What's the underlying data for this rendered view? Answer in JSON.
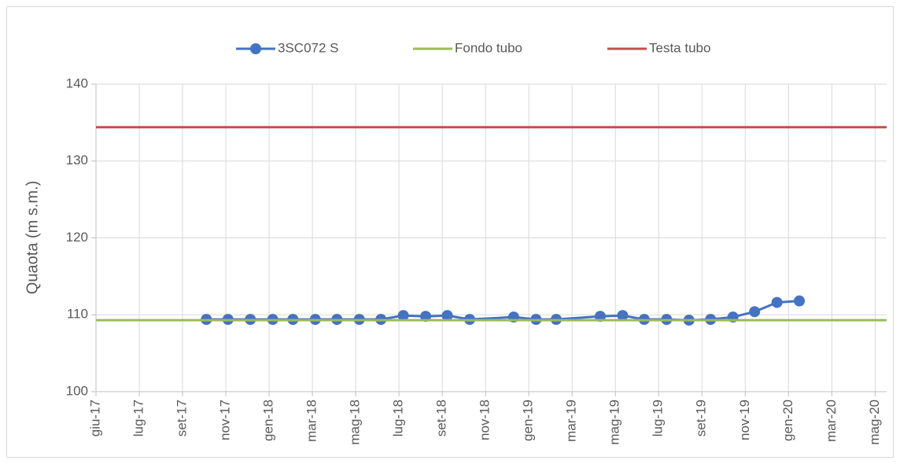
{
  "chart_data": {
    "type": "line",
    "y_label": "Quaota (m s.m.)",
    "xlim": [
      "2017-06-01",
      "2020-06-01"
    ],
    "xticks": [
      {
        "value": "2017-06-01",
        "label": "giu-17"
      },
      {
        "value": "2017-07-31",
        "label": "lug-17"
      },
      {
        "value": "2017-09-29",
        "label": "set-17"
      },
      {
        "value": "2017-11-28",
        "label": "nov-17"
      },
      {
        "value": "2018-01-27",
        "label": "gen-18"
      },
      {
        "value": "2018-03-28",
        "label": "mar-18"
      },
      {
        "value": "2018-05-27",
        "label": "mag-18"
      },
      {
        "value": "2018-07-26",
        "label": "lug-18"
      },
      {
        "value": "2018-09-24",
        "label": "set-18"
      },
      {
        "value": "2018-11-23",
        "label": "nov-18"
      },
      {
        "value": "2019-01-22",
        "label": "gen-19"
      },
      {
        "value": "2019-03-23",
        "label": "mar-19"
      },
      {
        "value": "2019-05-22",
        "label": "mag-19"
      },
      {
        "value": "2019-07-21",
        "label": "lug-19"
      },
      {
        "value": "2019-09-19",
        "label": "set-19"
      },
      {
        "value": "2019-11-18",
        "label": "nov-19"
      },
      {
        "value": "2020-01-17",
        "label": "gen-20"
      },
      {
        "value": "2020-03-17",
        "label": "mar-20"
      },
      {
        "value": "2020-05-16",
        "label": "mag-20"
      }
    ],
    "ylim": [
      100,
      140
    ],
    "yticks": [
      100,
      110,
      120,
      130,
      140
    ],
    "grid": true,
    "legend": "top",
    "series": [
      {
        "name": "3SC072 S",
        "color": "#4472c4",
        "markers": true,
        "x": [
          "2017-11",
          "2017-12",
          "2018-01",
          "2018-02",
          "2018-03",
          "2018-04",
          "2018-05",
          "2018-06",
          "2018-07",
          "2018-08",
          "2018-09",
          "2018-10",
          "2018-11",
          "2019-01",
          "2019-02",
          "2019-03",
          "2019-05",
          "2019-06",
          "2019-07",
          "2019-08",
          "2019-09",
          "2019-10",
          "2019-11",
          "2019-12",
          "2020-01",
          "2020-02"
        ],
        "values": [
          109.4,
          109.4,
          109.4,
          109.4,
          109.4,
          109.4,
          109.4,
          109.4,
          109.4,
          109.9,
          109.8,
          109.9,
          109.4,
          109.7,
          109.4,
          109.4,
          109.8,
          109.9,
          109.4,
          109.4,
          109.3,
          109.4,
          109.7,
          110.4,
          111.6,
          111.8
        ]
      },
      {
        "name": "Fondo tubo",
        "color": "#9bbb59",
        "markers": false,
        "x": [
          "2017-06",
          "2020-06"
        ],
        "values": [
          109.3,
          109.3
        ]
      },
      {
        "name": "Testa tubo",
        "color": "#c0504d",
        "markers": false,
        "x": [
          "2017-06",
          "2020-06"
        ],
        "values": [
          134.4,
          134.4
        ]
      }
    ]
  }
}
